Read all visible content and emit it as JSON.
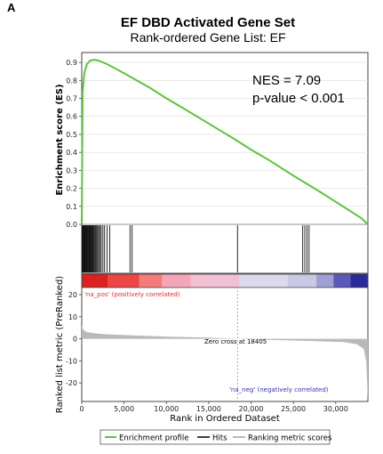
{
  "panel_letter": "A",
  "title": "EF DBD Activated Gene Set",
  "subtitle": "Rank-ordered Gene List: EF",
  "nes_text": "NES = 7.09",
  "pvalue_text": "p-value < 0.001",
  "colors": {
    "profile": "#5cc43e",
    "hits": "#111111",
    "metric": "#b9b9b9",
    "zero_cross": "#9a9a9a",
    "pos_label": "#e03030",
    "neg_label": "#3434b4"
  },
  "chart_data": {
    "type": "line",
    "xlabel": "Rank in Ordered Dataset",
    "x_ticks": [
      0,
      5000,
      10000,
      15000,
      20000,
      25000,
      30000
    ],
    "x_tick_labels": [
      "0",
      "5,000",
      "10,000",
      "15,000",
      "20,000",
      "25,000",
      "30,000"
    ],
    "xlim": [
      0,
      33800
    ],
    "es_panel": {
      "ylabel": "Enrichment score (ES)",
      "ylim": [
        0,
        0.95
      ],
      "y_ticks": [
        0.0,
        0.1,
        0.2,
        0.3,
        0.4,
        0.5,
        0.6,
        0.7,
        0.8,
        0.9
      ],
      "y_tick_labels": [
        "0.0",
        "0.1",
        "0.2",
        "0.3",
        "0.4",
        "0.5",
        "0.6",
        "0.7",
        "0.8",
        "0.9"
      ],
      "series": [
        {
          "name": "Enrichment profile",
          "x": [
            0,
            100,
            300,
            600,
            1000,
            1500,
            2000,
            3000,
            5000,
            8000,
            10000,
            12000,
            15000,
            18000,
            20000,
            22000,
            25000,
            28000,
            30000,
            32000,
            33000,
            33800
          ],
          "y": [
            0.0,
            0.74,
            0.84,
            0.89,
            0.91,
            0.915,
            0.91,
            0.89,
            0.84,
            0.76,
            0.7,
            0.645,
            0.56,
            0.475,
            0.415,
            0.36,
            0.27,
            0.185,
            0.125,
            0.065,
            0.035,
            0.0
          ]
        }
      ],
      "grid": true
    },
    "hits": {
      "name": "Hits",
      "positions": [
        60,
        130,
        200,
        270,
        340,
        410,
        480,
        550,
        620,
        700,
        780,
        860,
        940,
        1020,
        1100,
        1180,
        1260,
        1350,
        1450,
        1550,
        1650,
        1760,
        1880,
        2000,
        2150,
        2300,
        2500,
        2700,
        3000,
        3300,
        5700,
        5950,
        18400,
        26100,
        26350,
        26600,
        26850
      ]
    },
    "heatmap_colors": [
      "#dd2020",
      "#ee4545",
      "#f57a7a",
      "#f4a6b8",
      "#f1c0d3",
      "#dcd9ec",
      "#c9c9e6",
      "#9f9fd6",
      "#5a5ab8",
      "#2a2a9a"
    ],
    "metric_panel": {
      "ylabel": "Ranked list metric (PreRanked)",
      "ylim": [
        -28,
        22
      ],
      "y_ticks": [
        20,
        10,
        0,
        -10,
        -20
      ],
      "y_tick_labels": [
        "20",
        "10",
        "0",
        "-10",
        "-20"
      ],
      "zero_cross_text": "Zero cross at 18405",
      "zero_cross": 18405,
      "pos_label": "'na_pos' (positively correlated)",
      "neg_label": "'na_neg' (negatively correlated)",
      "series": [
        {
          "name": "Ranking metric scores",
          "x": [
            0,
            200,
            600,
            1500,
            3000,
            6000,
            10000,
            15000,
            18405,
            22000,
            27000,
            31000,
            32500,
            33300,
            33600,
            33800
          ],
          "y": [
            6,
            4,
            3,
            2.5,
            2.0,
            1.5,
            1.0,
            0.5,
            0,
            -0.5,
            -1.0,
            -1.5,
            -2.5,
            -4.5,
            -10,
            -28
          ]
        }
      ]
    },
    "legend": [
      {
        "label": "Enrichment profile",
        "kind": "profile"
      },
      {
        "label": "Hits",
        "kind": "hits"
      },
      {
        "label": "Ranking metric scores",
        "kind": "metric"
      }
    ]
  }
}
